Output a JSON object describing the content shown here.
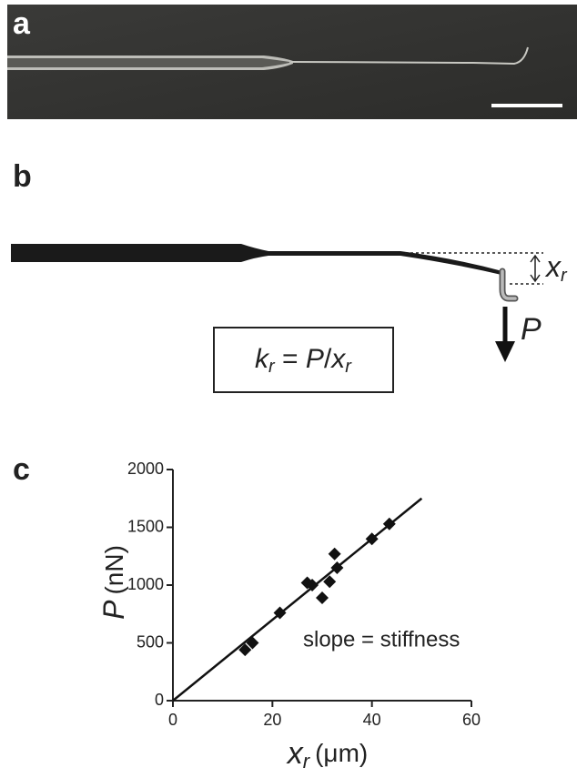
{
  "panel_labels": [
    "a",
    "b",
    "c"
  ],
  "diagram": {
    "equation": [
      "k",
      "r",
      " = ",
      "P",
      "/",
      "x",
      "r"
    ],
    "deflection_label": [
      "x",
      "r"
    ],
    "force_label": "P"
  },
  "chart_data": {
    "type": "scatter",
    "x": [
      14.5,
      16,
      21.5,
      27,
      28,
      30,
      31.5,
      32.5,
      33,
      40,
      43.5
    ],
    "series": [
      {
        "color": "#111111",
        "values": [
          440,
          500,
          760,
          1020,
          1000,
          890,
          1030,
          1270,
          1150,
          1400,
          1530
        ]
      }
    ],
    "fit_line": {
      "x": [
        0,
        50
      ],
      "y": [
        0,
        1750
      ]
    },
    "xlim": [
      0,
      60
    ],
    "xticks": [
      0,
      20,
      40,
      60
    ],
    "ylim": [
      0,
      2000
    ],
    "yticks": [
      0,
      500,
      1000,
      1500,
      2000
    ],
    "x_label": {
      "symbol": "x",
      "subscript": "r",
      "unit": "(μm)"
    },
    "y_label": {
      "symbol": "P",
      "unit": "(nN)"
    },
    "annotation": "slope = stiffness"
  }
}
